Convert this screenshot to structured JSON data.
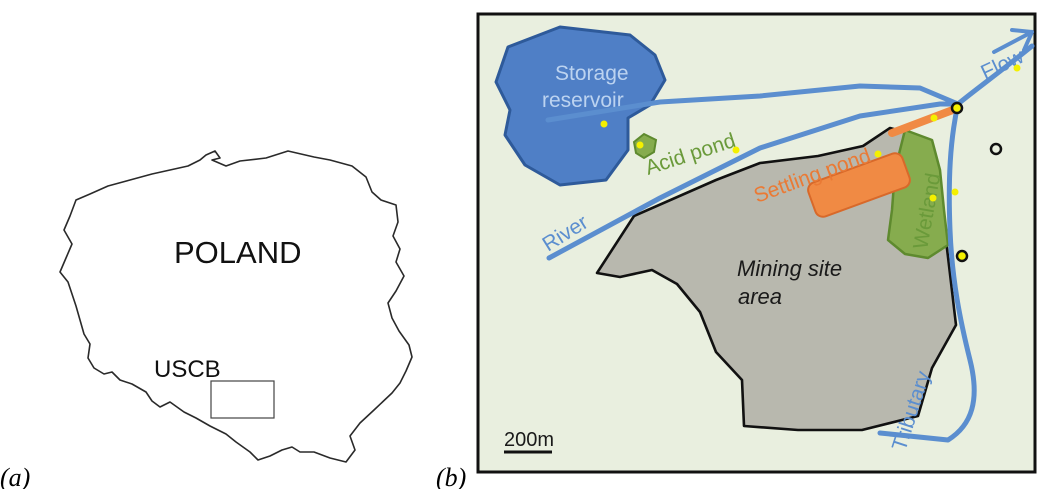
{
  "panel_a": {
    "label": "(a)",
    "country_label": "POLAND",
    "region_label": "USCB"
  },
  "panel_b": {
    "label": "(b)",
    "labels": {
      "storage_reservoir_line1": "Storage",
      "storage_reservoir_line2": "reservoir",
      "flow": "Flow",
      "acid_pond": "Acid pond",
      "settling_pond": "Settling pond",
      "wetland": "Wetland",
      "river": "River",
      "mining_site_line1": "Mining site",
      "mining_site_line2": "area",
      "tributary": "Tributary",
      "scale": "200m"
    },
    "colors": {
      "background": "#e9efdf",
      "water": "#5b8ecf",
      "reservoir": "#4f7fc6",
      "mining": "#b8b8ae",
      "settling": "#f08a44",
      "wetland": "#86ac4e",
      "sample_point": "#f4f000"
    }
  }
}
